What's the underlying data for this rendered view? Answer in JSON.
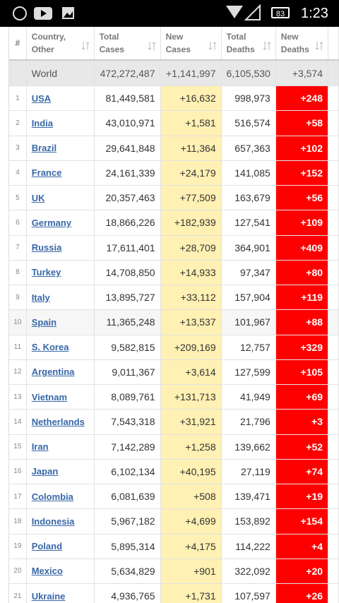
{
  "status_bar": {
    "battery": "83",
    "time": "1:23"
  },
  "table": {
    "headers": [
      "#",
      "Country, Other",
      "Total Cases",
      "New Cases",
      "Total Deaths",
      "New Deaths"
    ],
    "world": [
      "World",
      "472,272,487",
      "+1,141,997",
      "6,105,530",
      "+3,574"
    ],
    "rows": [
      [
        "1",
        "USA",
        "81,449,581",
        "+16,632",
        "998,973",
        "+248"
      ],
      [
        "2",
        "India",
        "43,010,971",
        "+1,581",
        "516,574",
        "+58"
      ],
      [
        "3",
        "Brazil",
        "29,641,848",
        "+11,364",
        "657,363",
        "+102"
      ],
      [
        "4",
        "France",
        "24,161,339",
        "+24,179",
        "141,085",
        "+152"
      ],
      [
        "5",
        "UK",
        "20,357,463",
        "+77,509",
        "163,679",
        "+56"
      ],
      [
        "6",
        "Germany",
        "18,866,226",
        "+182,939",
        "127,541",
        "+109"
      ],
      [
        "7",
        "Russia",
        "17,611,401",
        "+28,709",
        "364,901",
        "+409"
      ],
      [
        "8",
        "Turkey",
        "14,708,850",
        "+14,933",
        "97,347",
        "+80"
      ],
      [
        "9",
        "Italy",
        "13,895,727",
        "+33,112",
        "157,904",
        "+119"
      ],
      [
        "10",
        "Spain",
        "11,365,248",
        "+13,537",
        "101,967",
        "+88"
      ],
      [
        "11",
        "S. Korea",
        "9,582,815",
        "+209,169",
        "12,757",
        "+329"
      ],
      [
        "12",
        "Argentina",
        "9,011,367",
        "+3,614",
        "127,599",
        "+105"
      ],
      [
        "13",
        "Vietnam",
        "8,089,761",
        "+131,713",
        "41,949",
        "+69"
      ],
      [
        "14",
        "Netherlands",
        "7,543,318",
        "+31,921",
        "21,796",
        "+3"
      ],
      [
        "15",
        "Iran",
        "7,142,289",
        "+1,258",
        "139,662",
        "+52"
      ],
      [
        "16",
        "Japan",
        "6,102,134",
        "+40,195",
        "27,119",
        "+74"
      ],
      [
        "17",
        "Colombia",
        "6,081,639",
        "+508",
        "139,471",
        "+19"
      ],
      [
        "18",
        "Indonesia",
        "5,967,182",
        "+4,699",
        "153,892",
        "+154"
      ],
      [
        "19",
        "Poland",
        "5,895,314",
        "+4,175",
        "114,222",
        "+4"
      ],
      [
        "20",
        "Mexico",
        "5,634,829",
        "+901",
        "322,092",
        "+20"
      ],
      [
        "21",
        "Ukraine",
        "4,936,765",
        "+1,731",
        "107,597",
        "+26"
      ]
    ]
  }
}
